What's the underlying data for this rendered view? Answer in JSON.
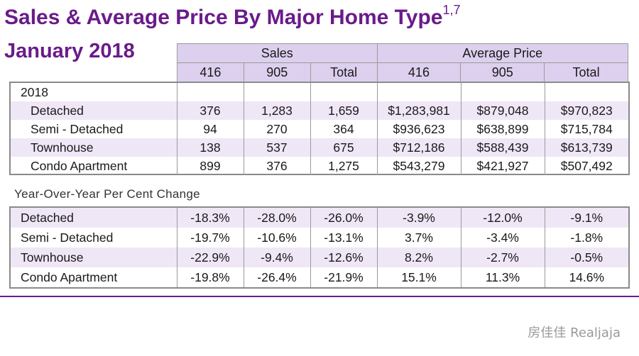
{
  "title": {
    "main": "Sales & Average Price By Major Home Type",
    "superscript": "1,7",
    "subtitle": "January 2018"
  },
  "header": {
    "groups": [
      "Sales",
      "Average Price"
    ],
    "columns": [
      "416",
      "905",
      "Total",
      "416",
      "905",
      "Total"
    ]
  },
  "sales_table": {
    "year_label": "2018",
    "rows": [
      {
        "type": "Detached",
        "values": [
          "376",
          "1,283",
          "1,659",
          "$1,283,981",
          "$879,048",
          "$970,823"
        ]
      },
      {
        "type": "Semi - Detached",
        "values": [
          "94",
          "270",
          "364",
          "$936,623",
          "$638,899",
          "$715,784"
        ]
      },
      {
        "type": "Townhouse",
        "values": [
          "138",
          "537",
          "675",
          "$712,186",
          "$588,439",
          "$613,739"
        ]
      },
      {
        "type": "Condo Apartment",
        "values": [
          "899",
          "376",
          "1,275",
          "$543,279",
          "$421,927",
          "$507,492"
        ]
      }
    ]
  },
  "yoy_table": {
    "caption": "Year-Over-Year Per Cent Change",
    "rows": [
      {
        "type": "Detached",
        "values": [
          "-18.3%",
          "-28.0%",
          "-26.0%",
          "-3.9%",
          "-12.0%",
          "-9.1%"
        ]
      },
      {
        "type": "Semi - Detached",
        "values": [
          "-19.7%",
          "-10.6%",
          "-13.1%",
          "3.7%",
          "-3.4%",
          "-1.8%"
        ]
      },
      {
        "type": "Townhouse",
        "values": [
          "-22.9%",
          "-9.4%",
          "-12.6%",
          "8.2%",
          "-2.7%",
          "-0.5%"
        ]
      },
      {
        "type": "Condo Apartment",
        "values": [
          "-19.8%",
          "-26.4%",
          "-21.9%",
          "15.1%",
          "11.3%",
          "14.6%"
        ]
      }
    ]
  },
  "watermark": "房佳佳 Realjaja"
}
